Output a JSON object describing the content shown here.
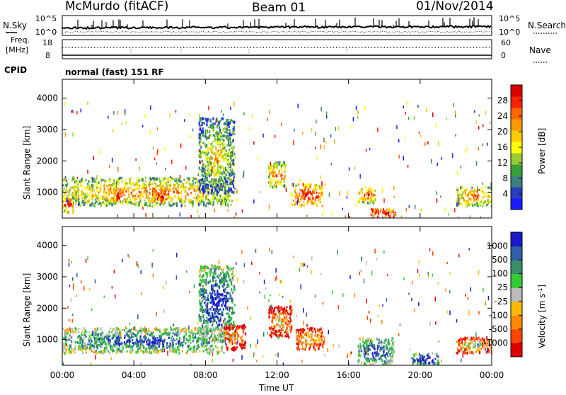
{
  "header": {
    "station": "McMurdo (fitACF)",
    "beam": "Beam 01",
    "date": "01/Nov/2014"
  },
  "status_panels": {
    "nsky_label": "N.Sky",
    "nsky_tick_top": "10^5",
    "nsky_tick_bottom": "10^0",
    "nsearch_label": "N.Search",
    "nsearch_tick_top": "10^5",
    "nsearch_tick_bottom": "10^0",
    "freq_label_line1": "Freq.",
    "freq_label_line2": "[MHz]",
    "freq_tick_top": "18",
    "freq_tick_bottom": "8",
    "nave_label": "Nave",
    "nave_tick_top": "60",
    "nave_tick_bottom": "0",
    "cpid_label": "CPID",
    "cpid_text": "normal (fast) 151 RF"
  },
  "chart_data": [
    {
      "type": "heatmap",
      "quantity": "Power",
      "xlabel": "",
      "ylabel": "Slant Range [km]",
      "x_ticks": [
        "00:00",
        "04:00",
        "08:00",
        "12:00",
        "16:00",
        "20:00",
        "00:00"
      ],
      "x_range_hours": [
        0,
        24
      ],
      "yticks": [
        1000,
        2000,
        3000,
        4000
      ],
      "ylim": [
        180,
        4600
      ],
      "colorbar_label": "Power [dB]",
      "colorbar_ticks": [
        "4",
        "8",
        "12",
        "16",
        "20",
        "24",
        "28"
      ],
      "colorbar_colors": [
        "#1a1aff",
        "#2a3fbf",
        "#3f7f7f",
        "#3aa03a",
        "#99cc33",
        "#ffff00",
        "#ffcc00",
        "#ff9900",
        "#ff6600",
        "#ff2200",
        "#dd0000"
      ],
      "echo_regions": [
        {
          "t0": 0.0,
          "t1": 9.5,
          "r0": 600,
          "r1": 1500,
          "level": 0.5
        },
        {
          "t0": 0.0,
          "t1": 0.6,
          "r0": 400,
          "r1": 900,
          "level": 0.7
        },
        {
          "t0": 2.8,
          "t1": 3.4,
          "r0": 700,
          "r1": 1200,
          "level": 0.8
        },
        {
          "t0": 5.0,
          "t1": 5.8,
          "r0": 700,
          "r1": 1200,
          "level": 0.8
        },
        {
          "t0": 7.6,
          "t1": 9.6,
          "r0": 1000,
          "r1": 3400,
          "level": 0.35
        },
        {
          "t0": 11.5,
          "t1": 12.5,
          "r0": 1200,
          "r1": 2000,
          "level": 0.55
        },
        {
          "t0": 12.8,
          "t1": 14.5,
          "r0": 600,
          "r1": 1300,
          "level": 0.7
        },
        {
          "t0": 16.5,
          "t1": 17.5,
          "r0": 700,
          "r1": 1200,
          "level": 0.6
        },
        {
          "t0": 17.2,
          "t1": 18.6,
          "r0": 180,
          "r1": 500,
          "level": 0.85
        },
        {
          "t0": 22.0,
          "t1": 24.0,
          "r0": 600,
          "r1": 1200,
          "level": 0.55
        }
      ]
    },
    {
      "type": "heatmap",
      "quantity": "Velocity",
      "xlabel": "Time UT",
      "ylabel": "Slant Range [km]",
      "x_ticks": [
        "00:00",
        "04:00",
        "08:00",
        "12:00",
        "16:00",
        "20:00",
        "00:00"
      ],
      "x_range_hours": [
        0,
        24
      ],
      "yticks": [
        1000,
        2000,
        3000,
        4000
      ],
      "ylim": [
        180,
        4600
      ],
      "colorbar_label_main": "Velocity [m s",
      "colorbar_label_exp": "-1",
      "colorbar_label_end": "]",
      "colorbar_ticks": [
        "-1000",
        "-500",
        "-100",
        "-25",
        "25",
        "100",
        "500",
        "1000"
      ],
      "colorbar_colors": [
        "#e00000",
        "#ff4400",
        "#ff8800",
        "#ffbb00",
        "#bbbbbb",
        "#33cc33",
        "#3a8f6a",
        "#2f5fa8",
        "#1a1acc"
      ],
      "echo_regions": [
        {
          "t0": 0.0,
          "t1": 9.0,
          "r0": 600,
          "r1": 1400,
          "level": 0.66
        },
        {
          "t0": 7.6,
          "t1": 9.6,
          "r0": 1000,
          "r1": 3400,
          "level": 0.75
        },
        {
          "t0": 9.0,
          "t1": 10.2,
          "r0": 700,
          "r1": 1500,
          "level": 0.15
        },
        {
          "t0": 11.5,
          "t1": 12.8,
          "r0": 1100,
          "r1": 2100,
          "level": 0.2
        },
        {
          "t0": 13.0,
          "t1": 14.6,
          "r0": 700,
          "r1": 1400,
          "level": 0.25
        },
        {
          "t0": 16.5,
          "t1": 18.5,
          "r0": 200,
          "r1": 1100,
          "level": 0.7
        },
        {
          "t0": 19.5,
          "t1": 21.0,
          "r0": 200,
          "r1": 600,
          "level": 0.8
        },
        {
          "t0": 22.0,
          "t1": 24.0,
          "r0": 600,
          "r1": 1100,
          "level": 0.3
        }
      ]
    }
  ]
}
